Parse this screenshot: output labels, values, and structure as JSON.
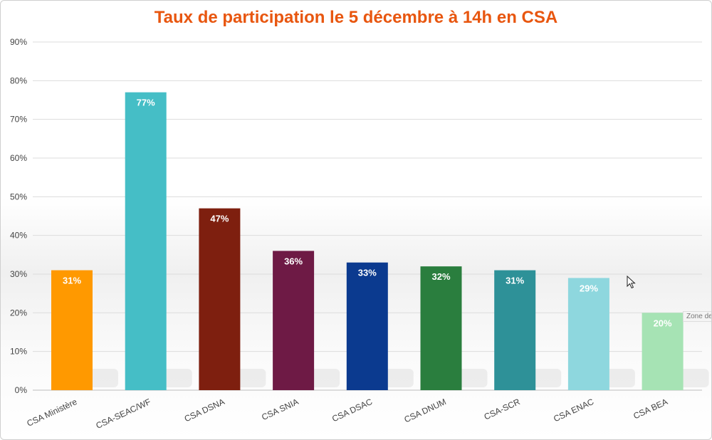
{
  "chart_data": {
    "type": "bar",
    "title": "Taux de participation le 5 décembre à 14h en CSA",
    "categories": [
      "CSA Ministère",
      "CSA-SEAC/WF",
      "CSA DSNA",
      "CSA SNIA",
      "CSA DSAC",
      "CSA DNUM",
      "CSA-SCR",
      "CSA ENAC",
      "CSA BEA"
    ],
    "values": [
      31,
      77,
      47,
      36,
      33,
      32,
      31,
      29,
      20
    ],
    "data_labels": [
      "31%",
      "77%",
      "47%",
      "36%",
      "33%",
      "32%",
      "31%",
      "29%",
      "20%"
    ],
    "colors": [
      "#ff9900",
      "#45bec6",
      "#7e1f0f",
      "#6e1a45",
      "#0b3a8f",
      "#2a7e3e",
      "#2e9198",
      "#8ed7de",
      "#a6e3b4"
    ],
    "ylim": [
      0,
      90
    ],
    "y_ticks": [
      "0%",
      "10%",
      "20%",
      "30%",
      "40%",
      "50%",
      "60%",
      "70%",
      "80%",
      "90%"
    ],
    "xlabel": "",
    "ylabel": "",
    "grid": true
  },
  "tooltip_text": "Zone de"
}
